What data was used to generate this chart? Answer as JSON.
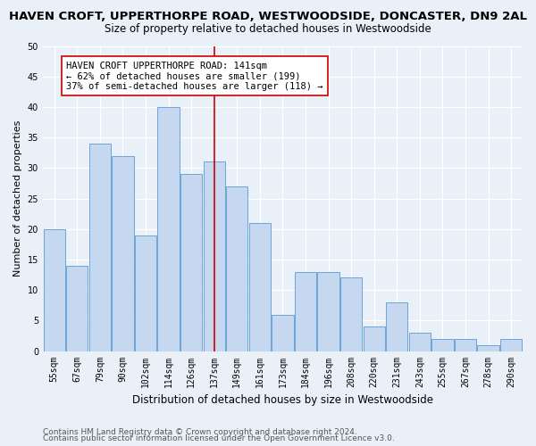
{
  "title": "HAVEN CROFT, UPPERTHORPE ROAD, WESTWOODSIDE, DONCASTER, DN9 2AL",
  "subtitle": "Size of property relative to detached houses in Westwoodside",
  "xlabel": "Distribution of detached houses by size in Westwoodside",
  "ylabel": "Number of detached properties",
  "bar_color": "#c5d8f0",
  "bar_edge_color": "#5b9bd5",
  "categories": [
    "55sqm",
    "67sqm",
    "79sqm",
    "90sqm",
    "102sqm",
    "114sqm",
    "126sqm",
    "137sqm",
    "149sqm",
    "161sqm",
    "173sqm",
    "184sqm",
    "196sqm",
    "208sqm",
    "220sqm",
    "231sqm",
    "243sqm",
    "255sqm",
    "267sqm",
    "278sqm",
    "290sqm"
  ],
  "values": [
    20,
    14,
    34,
    32,
    19,
    40,
    29,
    31,
    27,
    21,
    6,
    13,
    13,
    12,
    4,
    8,
    3,
    2,
    2,
    1,
    2
  ],
  "vline_x_index": 7,
  "vline_color": "#cc0000",
  "annotation_text": "HAVEN CROFT UPPERTHORPE ROAD: 141sqm\n← 62% of detached houses are smaller (199)\n37% of semi-detached houses are larger (118) →",
  "annotation_box_color": "#ffffff",
  "annotation_box_edge": "#cc0000",
  "ylim": [
    0,
    50
  ],
  "yticks": [
    0,
    5,
    10,
    15,
    20,
    25,
    30,
    35,
    40,
    45,
    50
  ],
  "footer1": "Contains HM Land Registry data © Crown copyright and database right 2024.",
  "footer2": "Contains public sector information licensed under the Open Government Licence v3.0.",
  "bg_color": "#eaf0f8",
  "plot_bg_color": "#eaf0f8",
  "grid_color": "#ffffff",
  "title_fontsize": 9.5,
  "subtitle_fontsize": 8.5,
  "xlabel_fontsize": 8.5,
  "ylabel_fontsize": 8,
  "tick_fontsize": 7,
  "annotation_fontsize": 7.5,
  "footer_fontsize": 6.5
}
